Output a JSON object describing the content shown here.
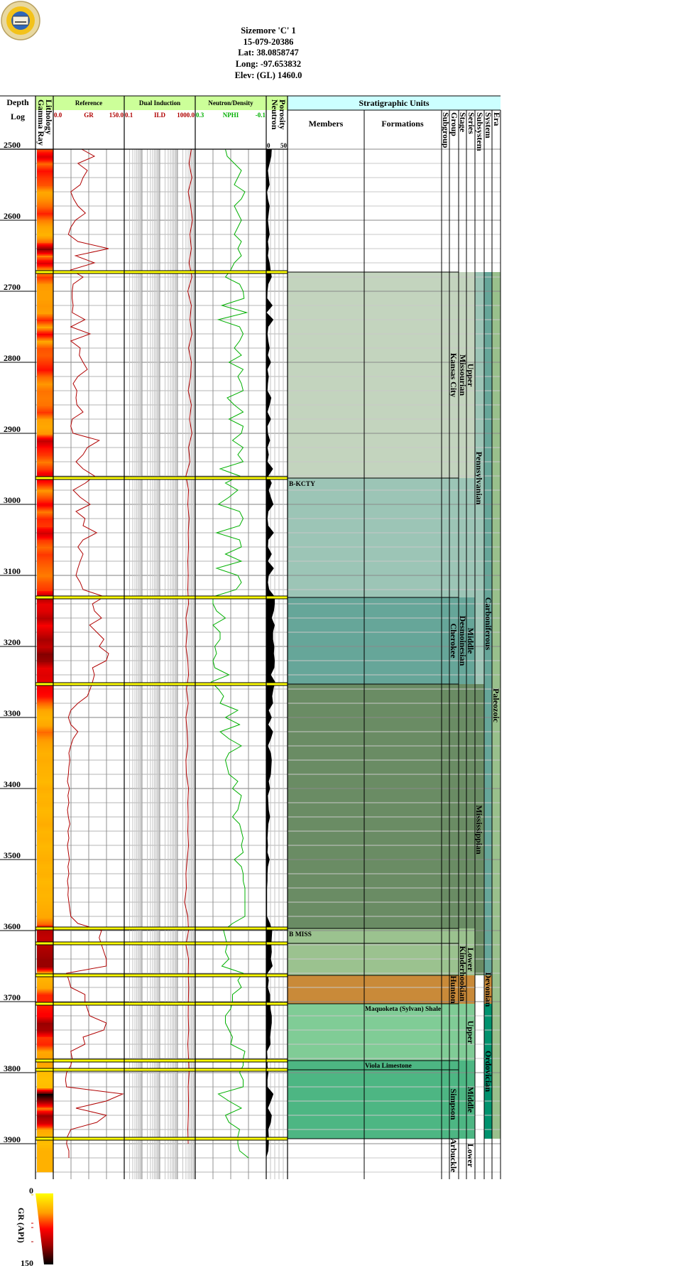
{
  "well": {
    "name": "Sizemore 'C' 1",
    "api": "15-079-20386",
    "lat": "Lat: 38.0858747",
    "long": "Long: -97.653832",
    "elev": "Elev: (GL) 1460.0"
  },
  "logo": {
    "text": "KANSAS GEOLOGICAL SURVEY"
  },
  "header": {
    "depth": "Depth",
    "log": "Log",
    "lithology": "Lithology",
    "gamma_ray": "Gamma Ray",
    "reference": "Reference",
    "dual_induction": "Dual Induction",
    "neutron_density": "Neutron/Density",
    "porosity": "Porosity",
    "neutron": "Neutron",
    "gr_min": "0.0",
    "gr_name": "GR",
    "gr_max": "150.0",
    "ild_min": "0.1",
    "ild_name": "ILD",
    "ild_max": "1000.0",
    "nphi_min": "0.3",
    "nphi_name": "NPHI",
    "nphi_max": "-0.1",
    "por_min": "0",
    "por_max": "50",
    "strat_title": "Stratigraphic Units",
    "members": "Members",
    "formations": "Formations",
    "subgroup": "Subgroup",
    "group": "Group",
    "stage": "Stage",
    "series": "Series",
    "subsystem": "Subsystem",
    "system": "System",
    "era": "Era"
  },
  "colors": {
    "header_green": "#ccff99",
    "header_cyan": "#ccffff",
    "gr_curve": "#b00000",
    "ild_curve": "#b00000",
    "nphi_curve": "#00b000",
    "top_line": "#ffff00"
  },
  "legend": {
    "title": "GR (API)",
    "min": "0",
    "max": "150"
  },
  "chart_data": {
    "type": "line",
    "title": "Sizemore 'C' 1 well log",
    "depth_range": [
      2500,
      3940
    ],
    "depth_ticks": [
      "2500",
      "2600",
      "2700",
      "2800",
      "2900",
      "3000",
      "3100",
      "3200",
      "3300",
      "3400",
      "3500",
      "3600",
      "3700",
      "3800",
      "3900"
    ],
    "depth_step": 10,
    "gr": {
      "name": "GR",
      "unit": "API",
      "range": [
        0,
        150
      ],
      "scale": "linear",
      "values": [
        60,
        87,
        52,
        72,
        63,
        57,
        37,
        43,
        52,
        68,
        47,
        37,
        32,
        52,
        117,
        47,
        87,
        37,
        63,
        42,
        40,
        40,
        42,
        40,
        67,
        37,
        78,
        37,
        57,
        55,
        63,
        72,
        52,
        42,
        50,
        48,
        50,
        63,
        40,
        37,
        42,
        97,
        72,
        63,
        48,
        63,
        87,
        68,
        42,
        57,
        78,
        48,
        67,
        63,
        92,
        63,
        52,
        63,
        57,
        52,
        48,
        57,
        63,
        108,
        83,
        87,
        102,
        77,
        92,
        107,
        97,
        117,
        112,
        83,
        87,
        83,
        78,
        72,
        52,
        37,
        32,
        37,
        52,
        42,
        37,
        33,
        35,
        33,
        32,
        30,
        34,
        31,
        33,
        30,
        32,
        35,
        31,
        33,
        30,
        32,
        34,
        31,
        33,
        30,
        32,
        31,
        33,
        35,
        37,
        52,
        102,
        97,
        102,
        107,
        112,
        112,
        28,
        33,
        37,
        67,
        67,
        72,
        77,
        112,
        107,
        63,
        67,
        37,
        40,
        37,
        28,
        26,
        28,
        147,
        112,
        48,
        112,
        92,
        37,
        30,
        28,
        33,
        33
      ]
    },
    "nphi": {
      "name": "NPHI",
      "unit": "v/v",
      "range": [
        0.3,
        -0.1
      ],
      "scale": "linear",
      "values": [
        0.13,
        0.12,
        0.08,
        0.04,
        0.06,
        0.08,
        0.02,
        0.04,
        0.08,
        0.06,
        0.04,
        0.06,
        0.08,
        0.04,
        0.06,
        0.04,
        0.08,
        0.1,
        0.13,
        0.05,
        0.03,
        0.025,
        0.15,
        0.01,
        0.17,
        0.05,
        0.03,
        0.05,
        0.08,
        0.04,
        0.11,
        0.03,
        0.06,
        0.04,
        0.03,
        0.12,
        0.08,
        0.03,
        0.11,
        0.03,
        0.04,
        0.09,
        0.03,
        0.06,
        0.03,
        0.16,
        0.05,
        0.13,
        0.06,
        0.11,
        0.17,
        0.05,
        0.03,
        0.05,
        0.18,
        0.05,
        0.04,
        0.13,
        0.04,
        0.18,
        0.06,
        0.04,
        0.07,
        0.2,
        0.2,
        0.18,
        0.13,
        0.2,
        0.16,
        0.16,
        0.19,
        0.18,
        0.2,
        0.19,
        0.11,
        0.21,
        0.17,
        0.14,
        0.16,
        0.06,
        0.13,
        0.05,
        0.16,
        0.11,
        0.04,
        0.11,
        0.13,
        0.12,
        0.11,
        0.06,
        0.09,
        0.04,
        0.05,
        0.06,
        0.09,
        0.05,
        0.04,
        0.03,
        0.04,
        0.03,
        0.08,
        0.04,
        0.03,
        0.03,
        0.02,
        0.02,
        0.02,
        0.02,
        0.02,
        0.09,
        0.14,
        0.13,
        0.12,
        0.13,
        0.11,
        0.15,
        0.03,
        0.06,
        0.04,
        0.09,
        0.09,
        0.1,
        0.13,
        0.13,
        0.11,
        0.09,
        0.1,
        0.02,
        0.03,
        0.03,
        0.05,
        0.03,
        0.03,
        0.17,
        0.11,
        0.04,
        0.13,
        0.11,
        0.05,
        0.06,
        0.06,
        0.05,
        0.0
      ]
    },
    "ild": {
      "name": "ILD",
      "unit": "ohm-m",
      "range": [
        0.1,
        1000
      ],
      "scale": "log",
      "depth_step": 20,
      "values": [
        600,
        450,
        650,
        400,
        550,
        700,
        500,
        600,
        450,
        650,
        380,
        600,
        500,
        650,
        420,
        600,
        550,
        400,
        600,
        480,
        650,
        420,
        500,
        300,
        420,
        380,
        450,
        400,
        420,
        380,
        400,
        380,
        420,
        300,
        350,
        300,
        380,
        420,
        320,
        400,
        300,
        350,
        380,
        300,
        320,
        420,
        380,
        400,
        380,
        420,
        350,
        300,
        320,
        250,
        380,
        420,
        300,
        420,
        400,
        430,
        410,
        400,
        430,
        380,
        420,
        450,
        400,
        420,
        410,
        380,
        400
      ]
    }
  },
  "strat": {
    "zones": [
      {
        "top": 2673,
        "base": 2963,
        "color": "#c3d4be"
      },
      {
        "top": 2963,
        "base": 3131,
        "color": "#9cc5b6"
      },
      {
        "top": 3131,
        "base": 3253,
        "color": "#66a699"
      },
      {
        "top": 3253,
        "base": 3597,
        "color": "#6a8c64"
      },
      {
        "top": 3597,
        "base": 3663,
        "color": "#9bc28f"
      },
      {
        "top": 3663,
        "base": 3703,
        "color": "#c98a39"
      },
      {
        "top": 3703,
        "base": 3783,
        "color": "#80cc96"
      },
      {
        "top": 3783,
        "base": 3893,
        "color": "#4db683"
      }
    ],
    "tops": [
      2673,
      2963,
      3131,
      3253,
      3597,
      3618,
      3663,
      3703,
      3783,
      3796,
      3893
    ],
    "members": [
      {
        "label": "B-KCTY",
        "depth": 2963
      },
      {
        "label": "B MISS",
        "depth": 3597
      }
    ],
    "formations": [
      {
        "label": "Maquoketa (Sylvan) Shale",
        "top": 3703,
        "base": 3783
      },
      {
        "label": "Viola Limestone",
        "top": 3783,
        "base": 3796
      }
    ],
    "group": [
      {
        "label": "Kansas City",
        "top": 2673,
        "base": 2963
      },
      {
        "label": "Cherokee",
        "top": 3131,
        "base": 3253
      },
      {
        "label": "Hunton",
        "top": 3663,
        "base": 3703
      },
      {
        "label": "Simpson",
        "top": 3796,
        "base": 3893
      },
      {
        "label": "Arbuckle",
        "top": 3893,
        "base": 3940
      }
    ],
    "stage": [
      {
        "label": "Missourian",
        "top": 2673,
        "base": 2963
      },
      {
        "label": "Desmoinesian",
        "top": 3131,
        "base": 3253
      },
      {
        "label": "Kinderhookian",
        "top": 3618,
        "base": 3703
      }
    ],
    "series": [
      {
        "label": "Upper",
        "top": 2673,
        "base": 2963
      },
      {
        "label": "Middle",
        "top": 3131,
        "base": 3253
      },
      {
        "label": "Lower",
        "top": 3618,
        "base": 3663
      },
      {
        "label": "Upper",
        "top": 3703,
        "base": 3783
      },
      {
        "label": "Middle",
        "top": 3783,
        "base": 3893
      },
      {
        "label": "Lower",
        "top": 3893,
        "base": 3940
      }
    ],
    "subsystem": [
      {
        "label": "Pennsylvanian",
        "top": 2673,
        "base": 3253,
        "color": "#9cc5b6"
      },
      {
        "label": "Mississippian",
        "top": 3253,
        "base": 3663,
        "color": "#6a8c64"
      }
    ],
    "system": [
      {
        "label": "Carboniferous",
        "top": 2673,
        "base": 3663,
        "color": "#66a699"
      },
      {
        "label": "Devonian",
        "top": 3663,
        "base": 3703,
        "color": "#c98a39"
      },
      {
        "label": "Ordovician",
        "top": 3703,
        "base": 3893,
        "color": "#00926e"
      }
    ],
    "era": [
      {
        "label": "Paleozoic",
        "top": 2673,
        "base": 3893,
        "color": "#99c08c"
      }
    ]
  }
}
